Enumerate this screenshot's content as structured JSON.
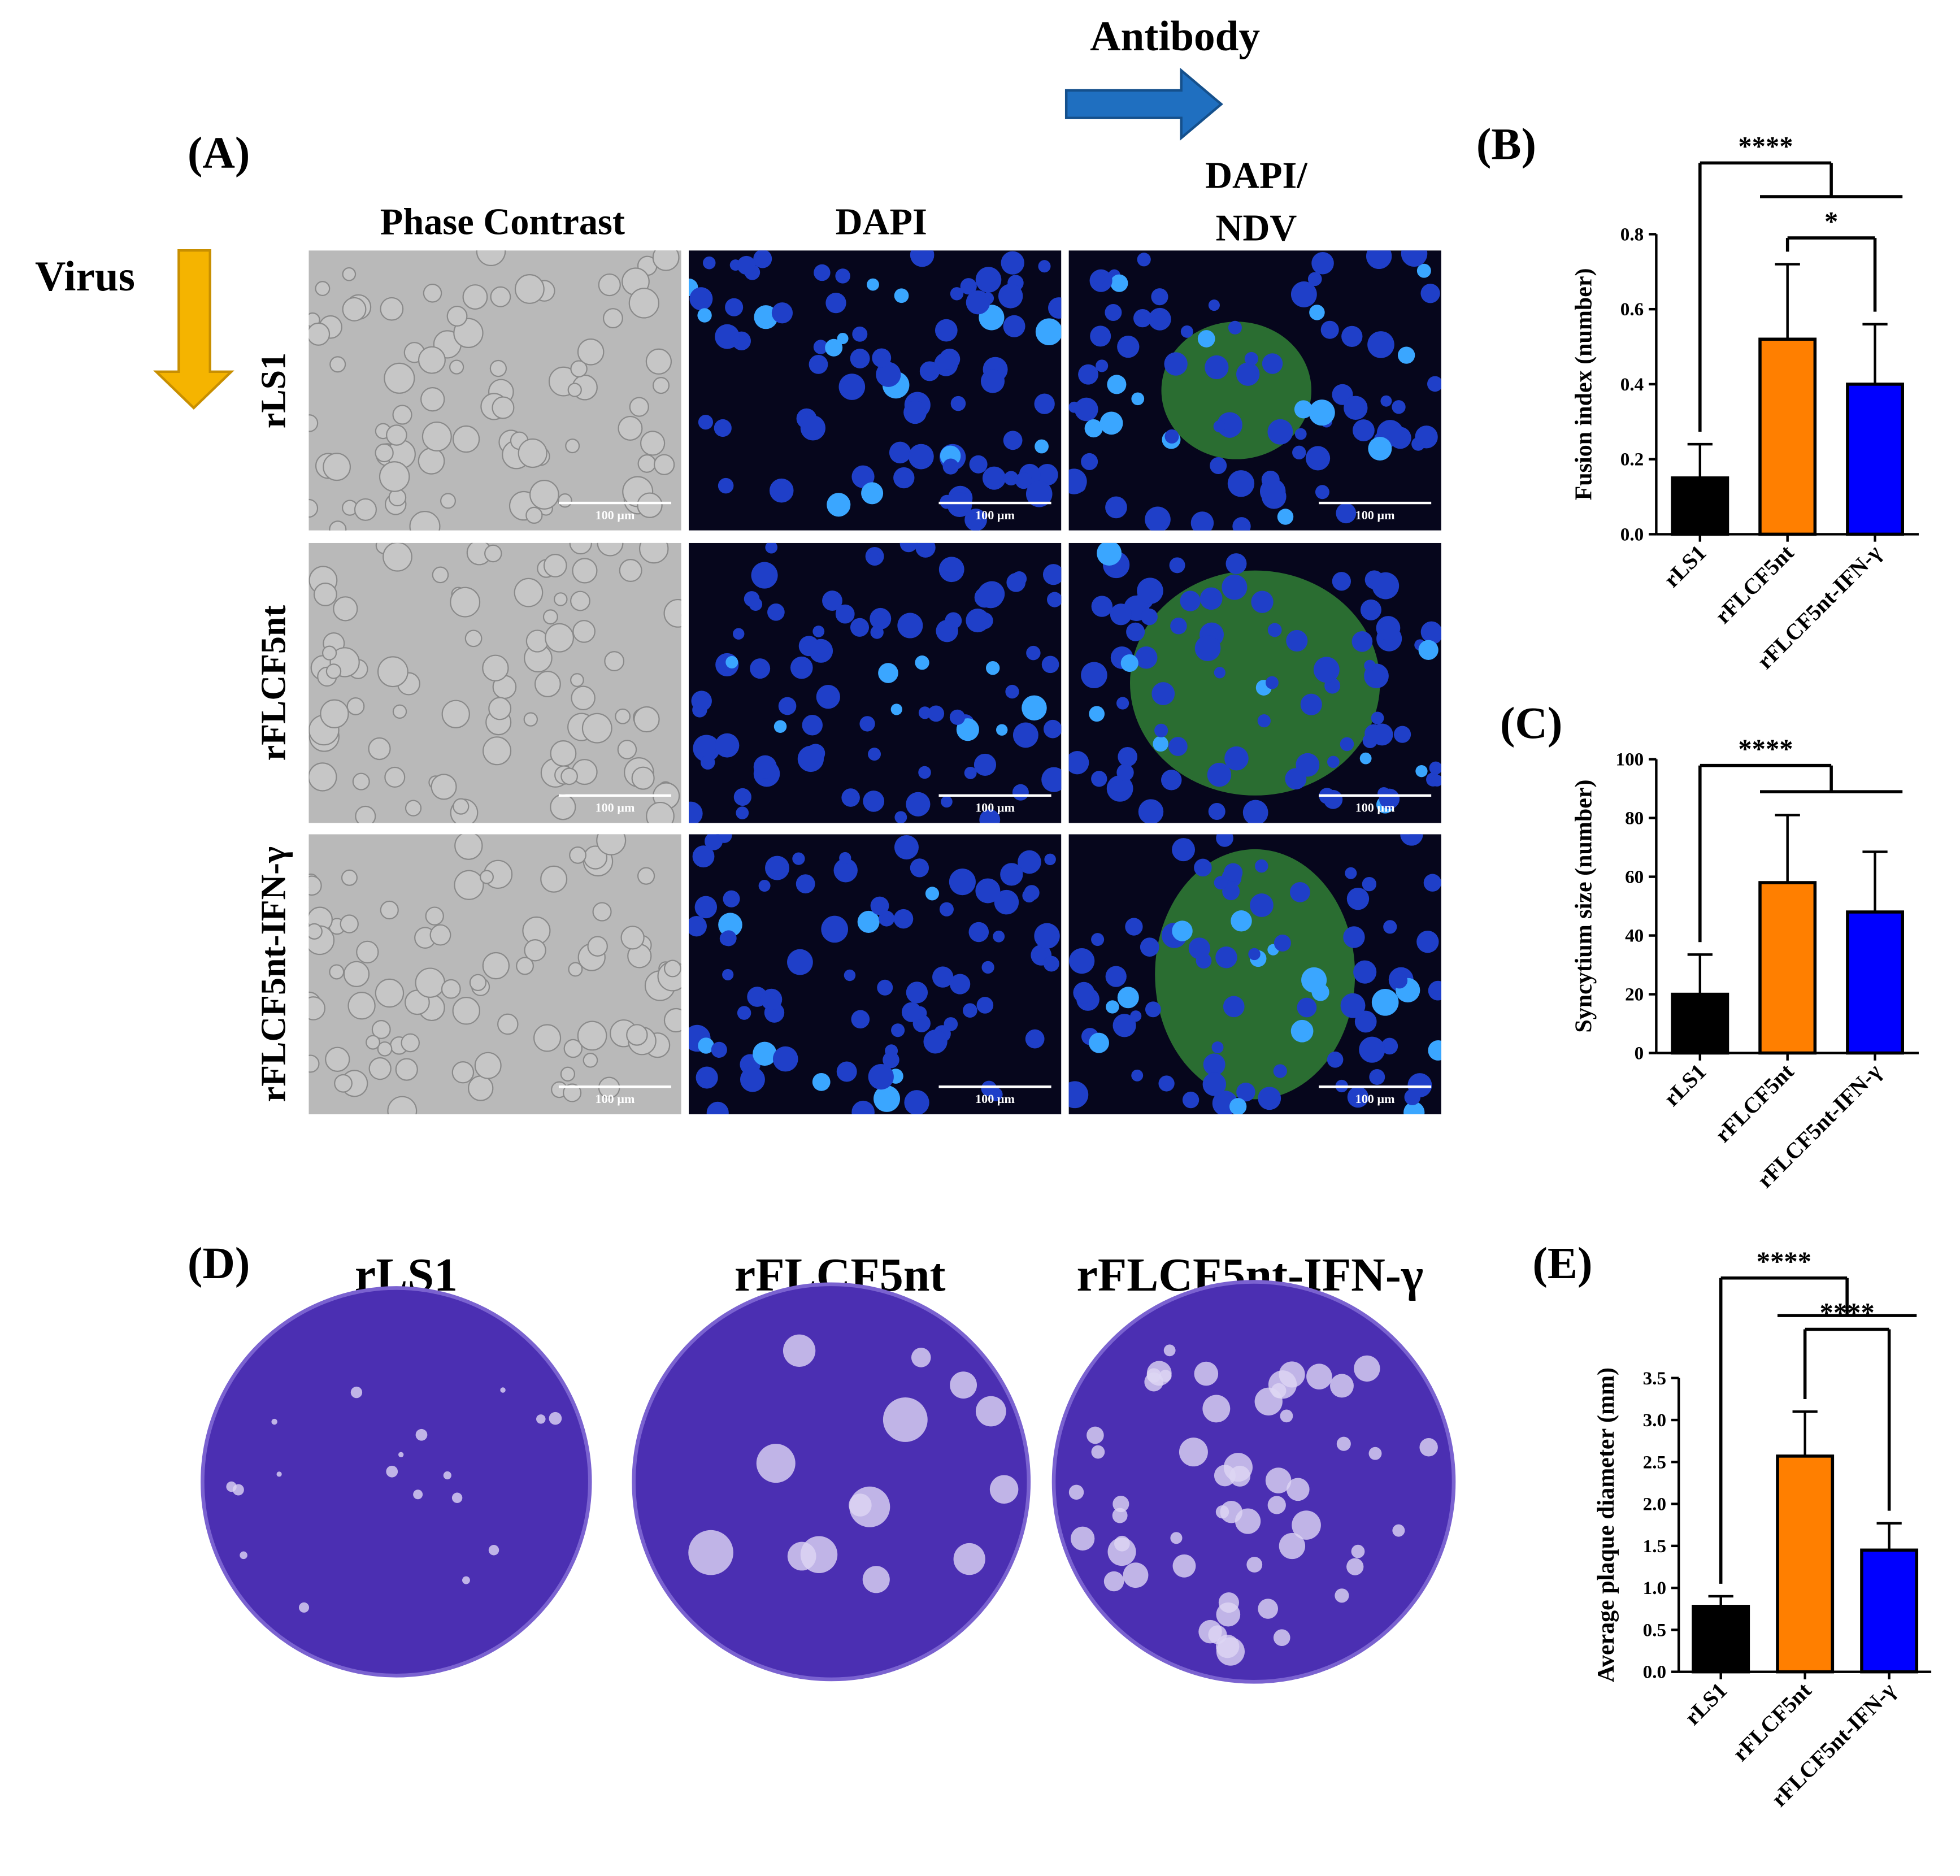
{
  "figure": {
    "panel_labels": [
      "(A)",
      "(B)",
      "(C)",
      "(D)",
      "(E)"
    ],
    "virus": "Virus",
    "antibody": "Antibody",
    "columns": [
      "Phase Contrast",
      "DAPI"
    ],
    "merge_column": [
      "DAPI/",
      "NDV"
    ],
    "rows": [
      "rLS1",
      "rFLCF5nt",
      "rFLCF5nt-IFN-γ"
    ],
    "scale_bar": "100 µm",
    "plates": [
      "rLS1",
      "rFLCF5nt",
      "rFLCF5nt-IFN-γ"
    ]
  },
  "chart_data": [
    {
      "type": "bar",
      "ylabel": "Fusion index (number)",
      "categories": [
        "rLS1",
        "rFLCF5nt",
        "rFLCF5nt-IFN-γ"
      ],
      "values": [
        0.15,
        0.52,
        0.4
      ],
      "errors": [
        0.09,
        0.2,
        0.16
      ],
      "colors": [
        "#000000",
        "#ff7f00",
        "#0000ff"
      ],
      "ylim": [
        0,
        0.8
      ],
      "yticks": [
        {
          "value": 0,
          "label": "0.0"
        },
        0.2,
        0.4,
        0.6,
        0.8
      ],
      "annotations": [
        "****",
        "*"
      ]
    },
    {
      "type": "bar",
      "ylabel": "Syncytium size (number)",
      "categories": [
        "rLS1",
        "rFLCF5nt",
        "rFLCF5nt-IFN-γ"
      ],
      "values": [
        20,
        58,
        48
      ],
      "errors": [
        13.5,
        23,
        20.5
      ],
      "colors": [
        "#000000",
        "#ff7f00",
        "#0000ff"
      ],
      "ylim": [
        0,
        100
      ],
      "yticks": [
        0,
        20,
        40,
        60,
        80,
        100
      ],
      "annotations": [
        "****"
      ]
    },
    {
      "type": "bar",
      "ylabel": "Average plaque diameter (mm)",
      "categories": [
        "rLS1",
        "rFLCF5nt",
        "rFLCF5nt-IFN-γ"
      ],
      "values": [
        0.78,
        2.57,
        1.45
      ],
      "errors": [
        0.12,
        0.53,
        0.32
      ],
      "colors": [
        "#000000",
        "#ff7f00",
        "#0000ff"
      ],
      "ylim": [
        0,
        3.5
      ],
      "yticks": [
        {
          "value": 0,
          "label": "0.0"
        },
        0.5,
        {
          "value": 1,
          "label": "1.0"
        },
        1.5,
        {
          "value": 2,
          "label": "2.0"
        },
        2.5,
        {
          "value": 3,
          "label": "3.0"
        },
        3.5
      ],
      "annotations": [
        "****",
        "****"
      ]
    }
  ]
}
